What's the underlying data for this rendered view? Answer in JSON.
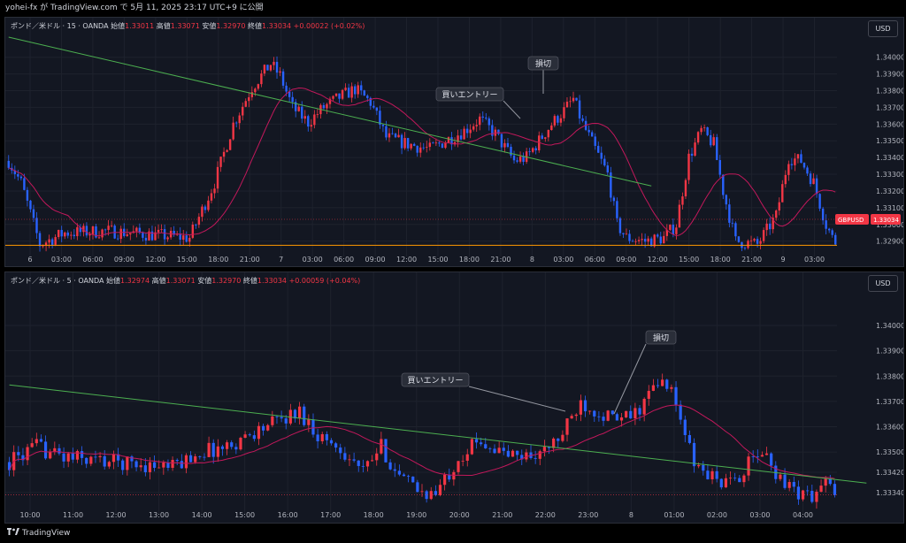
{
  "header": {
    "text": "yohei-fx が TradingView.com で 5月 11, 2025 23:17 UTC+9 に公開"
  },
  "footer": {
    "brand": "TradingView",
    "logo_icon": "tradingview-logo-icon"
  },
  "colors": {
    "bull": "#f23645",
    "bear": "#2962ff",
    "ma": "#c2185b",
    "trend": "#4caf50",
    "support": "#ff9800",
    "background": "#131722"
  },
  "charts": [
    {
      "legend": {
        "symbol": "ポンド／米ドル · 15 · OANDA",
        "open_label": "始値",
        "open": "1.33011",
        "high_label": "高値",
        "high": "1.33071",
        "low_label": "安値",
        "low": "1.32970",
        "close_label": "終値",
        "close": "1.33034",
        "change": "+0.00022 (+0.02%)"
      },
      "currency_button": "USD",
      "price_tag": {
        "symbol": "GBPUSD",
        "value": "1.33034"
      }
    },
    {
      "legend": {
        "symbol": "ポンド／米ドル · 5 · OANDA",
        "open_label": "始値",
        "open": "1.32974",
        "high_label": "高値",
        "high": "1.33071",
        "low_label": "安値",
        "low": "1.32970",
        "close_label": "終値",
        "close": "1.33034",
        "change": "+0.00059 (+0.04%)"
      },
      "currency_button": "USD",
      "price_tag": null
    }
  ],
  "chart_data": [
    {
      "type": "candlestick",
      "ylim": [
        1.3284,
        1.3412
      ],
      "y_ticks": [
        "1.34000",
        "1.33900",
        "1.33800",
        "1.33700",
        "1.33600",
        "1.33500",
        "1.33400",
        "1.33300",
        "1.33200",
        "1.33100",
        "1.33000",
        "1.32900"
      ],
      "x_ticks": [
        "6",
        "03:00",
        "06:00",
        "09:00",
        "12:00",
        "15:00",
        "18:00",
        "21:00",
        "7",
        "03:00",
        "06:00",
        "09:00",
        "12:00",
        "15:00",
        "18:00",
        "21:00",
        "8",
        "03:00",
        "06:00",
        "09:00",
        "12:00",
        "15:00",
        "18:00",
        "21:00",
        "9",
        "03:00"
      ],
      "anchors": [
        [
          0,
          1.3338
        ],
        [
          4,
          1.3325
        ],
        [
          10,
          1.3288
        ],
        [
          18,
          1.3295
        ],
        [
          32,
          1.3296
        ],
        [
          45,
          1.3294
        ],
        [
          58,
          1.3292
        ],
        [
          66,
          1.3325
        ],
        [
          72,
          1.336
        ],
        [
          78,
          1.3382
        ],
        [
          84,
          1.3396
        ],
        [
          87,
          1.3389
        ],
        [
          91,
          1.337
        ],
        [
          96,
          1.3361
        ],
        [
          101,
          1.337
        ],
        [
          106,
          1.3376
        ],
        [
          111,
          1.3381
        ],
        [
          116,
          1.3373
        ],
        [
          121,
          1.3352
        ],
        [
          128,
          1.3348
        ],
        [
          135,
          1.3345
        ],
        [
          142,
          1.3352
        ],
        [
          146,
          1.3356
        ],
        [
          151,
          1.3363
        ],
        [
          156,
          1.3354
        ],
        [
          162,
          1.3338
        ],
        [
          166,
          1.334
        ],
        [
          170,
          1.335
        ],
        [
          174,
          1.336
        ],
        [
          178,
          1.3368
        ],
        [
          181,
          1.3375
        ],
        [
          184,
          1.336
        ],
        [
          188,
          1.3345
        ],
        [
          192,
          1.333
        ],
        [
          195,
          1.33
        ],
        [
          198,
          1.3292
        ],
        [
          204,
          1.329
        ],
        [
          210,
          1.3292
        ],
        [
          214,
          1.33
        ],
        [
          218,
          1.334
        ],
        [
          222,
          1.3356
        ],
        [
          226,
          1.3348
        ],
        [
          229,
          1.332
        ],
        [
          233,
          1.329
        ],
        [
          240,
          1.3288
        ],
        [
          246,
          1.3305
        ],
        [
          250,
          1.334
        ],
        [
          254,
          1.3338
        ],
        [
          258,
          1.3325
        ],
        [
          262,
          1.33
        ],
        [
          265,
          1.3288
        ]
      ],
      "ma_period": 20,
      "trendline": [
        [
          1.3412,
          0
        ],
        [
          1.3323,
          206
        ]
      ],
      "support": 1.32875,
      "annotations": [
        "買いエントリー",
        "損切"
      ]
    },
    {
      "type": "candlestick",
      "ylim": [
        1.3328,
        1.3414
      ],
      "y_ticks": [
        "1.34000",
        "1.33900",
        "1.33800",
        "1.33700",
        "1.33600",
        "1.33500",
        "1.33420",
        "1.33340"
      ],
      "x_ticks": [
        "10:00",
        "11:00",
        "12:00",
        "13:00",
        "14:00",
        "15:00",
        "16:00",
        "17:00",
        "18:00",
        "19:00",
        "20:00",
        "21:00",
        "22:00",
        "23:00",
        "8",
        "01:00",
        "02:00",
        "03:00",
        "04:00"
      ],
      "anchors": [
        [
          0,
          1.3346
        ],
        [
          6,
          1.3352
        ],
        [
          12,
          1.3348
        ],
        [
          18,
          1.3347
        ],
        [
          24,
          1.3346
        ],
        [
          30,
          1.3345
        ],
        [
          36,
          1.3344
        ],
        [
          42,
          1.335
        ],
        [
          48,
          1.3352
        ],
        [
          54,
          1.3358
        ],
        [
          60,
          1.3363
        ],
        [
          64,
          1.3366
        ],
        [
          68,
          1.3357
        ],
        [
          74,
          1.335
        ],
        [
          78,
          1.3342
        ],
        [
          82,
          1.3352
        ],
        [
          86,
          1.334
        ],
        [
          90,
          1.3335
        ],
        [
          94,
          1.3333
        ],
        [
          99,
          1.3348
        ],
        [
          104,
          1.3355
        ],
        [
          108,
          1.335
        ],
        [
          112,
          1.3348
        ],
        [
          118,
          1.335
        ],
        [
          122,
          1.3357
        ],
        [
          126,
          1.337
        ],
        [
          130,
          1.3366
        ],
        [
          134,
          1.3362
        ],
        [
          138,
          1.3365
        ],
        [
          142,
          1.3375
        ],
        [
          145,
          1.3378
        ],
        [
          148,
          1.3363
        ],
        [
          151,
          1.3345
        ],
        [
          155,
          1.334
        ],
        [
          159,
          1.3337
        ],
        [
          163,
          1.3345
        ],
        [
          166,
          1.335
        ],
        [
          169,
          1.3342
        ],
        [
          173,
          1.3335
        ],
        [
          177,
          1.3332
        ],
        [
          180,
          1.3338
        ],
        [
          182,
          1.3333
        ]
      ],
      "ma_period": 20,
      "trendline": [
        [
          1.33765,
          0
        ],
        [
          1.33377,
          189
        ]
      ],
      "annotations": [
        "買いエントリー",
        "損切"
      ]
    }
  ]
}
